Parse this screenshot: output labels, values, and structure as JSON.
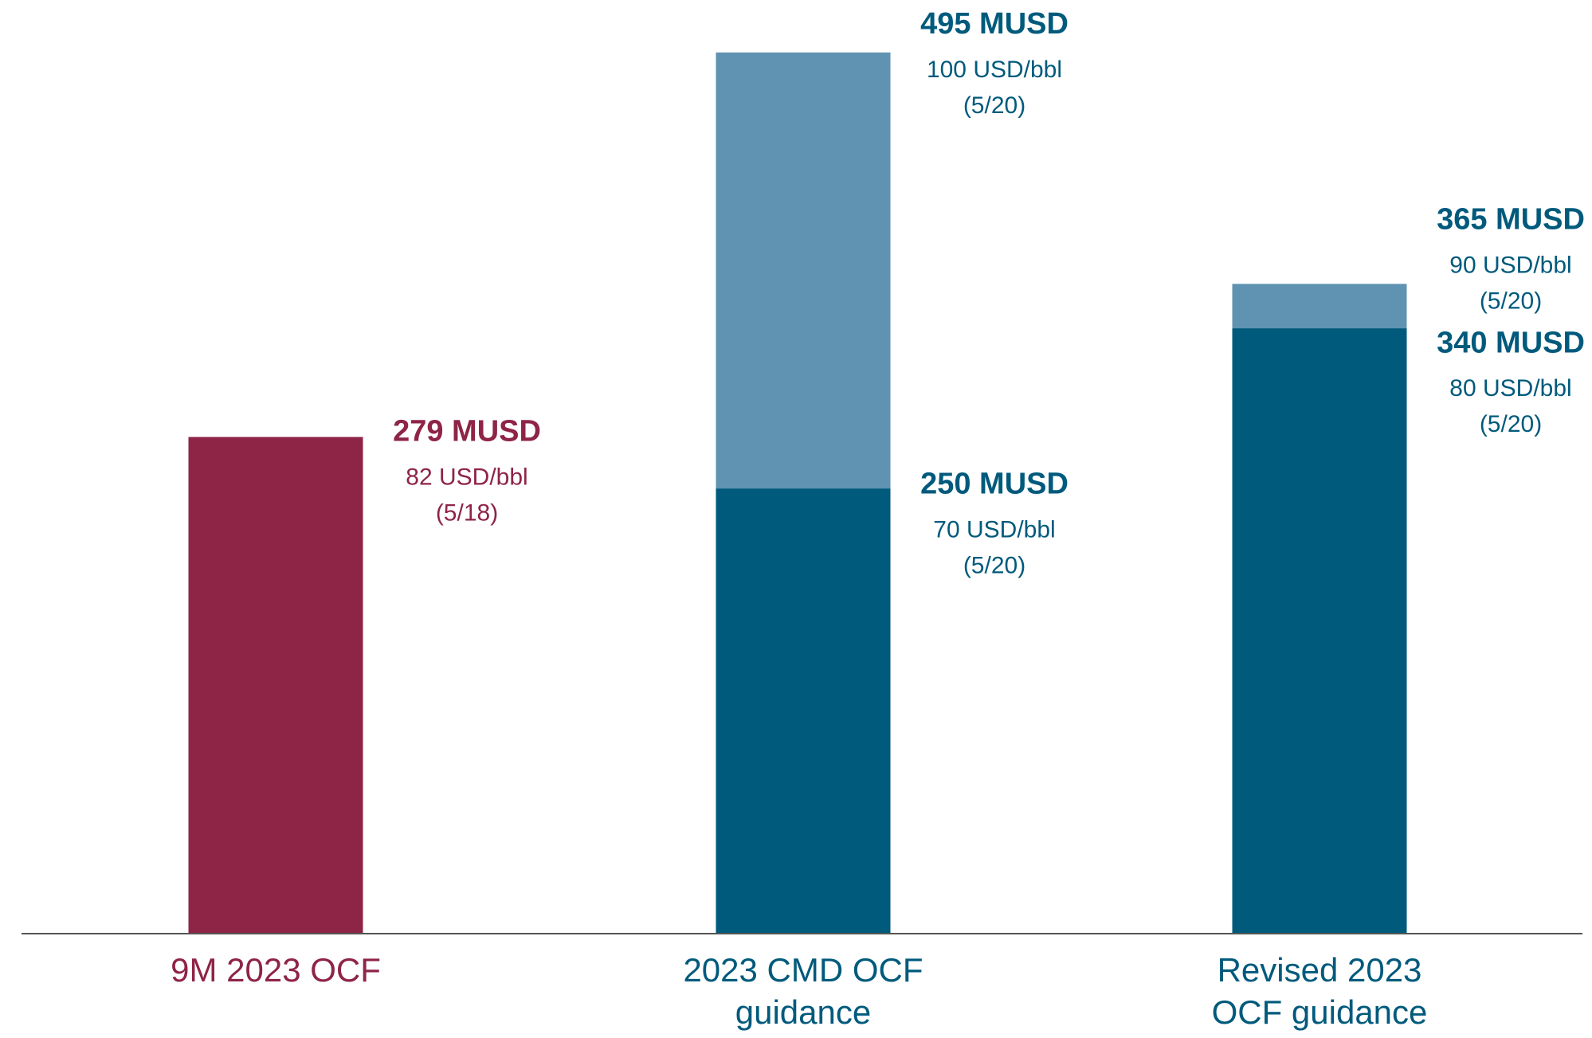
{
  "chart_data": {
    "type": "bar",
    "overlay": true,
    "categories": [
      "9M 2023 OCF",
      "2023 CMD OCF\nguidance",
      "Revised 2023\nOCF guidance"
    ],
    "category_colors": [
      "#8e2446",
      "#005a7c",
      "#005a7c"
    ],
    "series": [
      {
        "color": "#8e2446",
        "values": [
          279,
          null,
          null
        ],
        "value_labels": [
          "279 MUSD",
          null,
          null
        ],
        "details": [
          [
            "82 USD/bbl",
            "(5/18)"
          ],
          null,
          null
        ]
      },
      {
        "color": "#5f93b1",
        "values": [
          null,
          495,
          365
        ],
        "value_labels": [
          null,
          "495 MUSD",
          "365 MUSD"
        ],
        "details": [
          null,
          [
            "100 USD/bbl",
            "(5/20)"
          ],
          [
            "90 USD/bbl",
            "(5/20)"
          ]
        ]
      },
      {
        "color": "#005a7c",
        "values": [
          null,
          250,
          340
        ],
        "value_labels": [
          null,
          "250 MUSD",
          "340 MUSD"
        ],
        "details": [
          null,
          [
            "70 USD/bbl",
            "(5/20)"
          ],
          [
            "80 USD/bbl",
            "(5/20)"
          ]
        ]
      }
    ],
    "ylim": [
      0,
      520
    ]
  }
}
